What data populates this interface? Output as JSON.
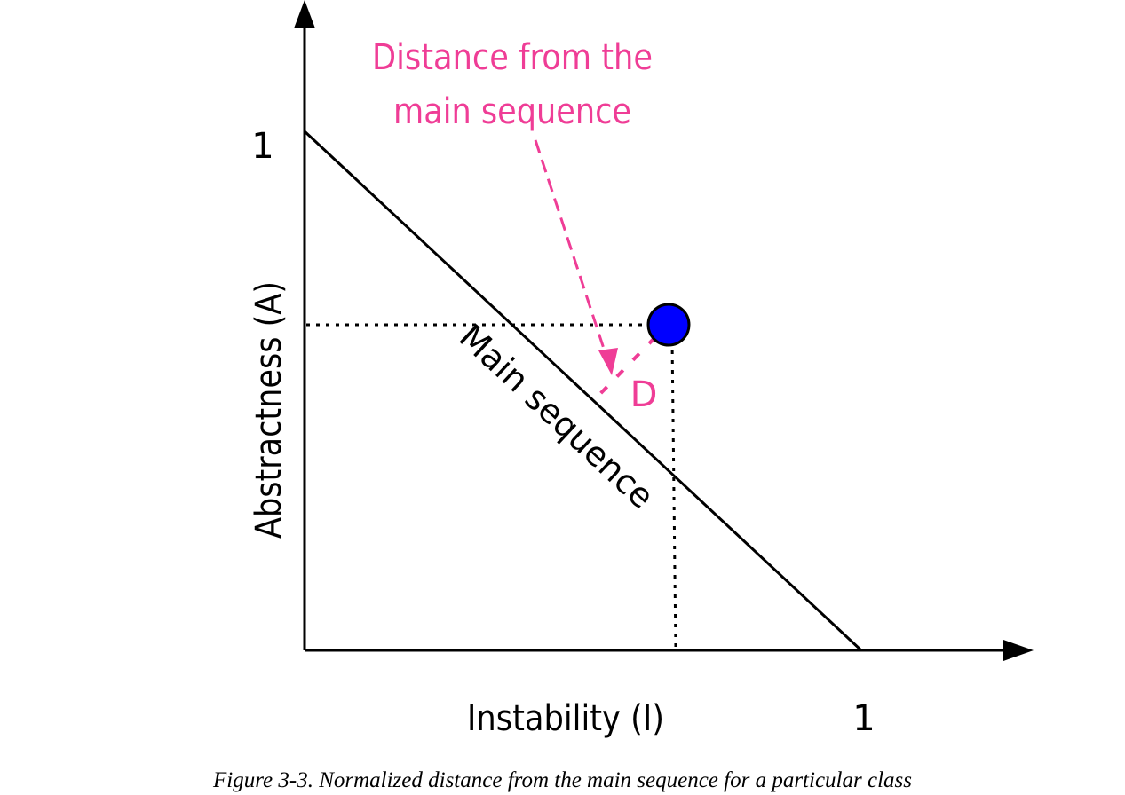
{
  "diagram": {
    "y_tick_label": "1",
    "x_tick_label": "1",
    "y_axis_label": "Abstractness (A)",
    "x_axis_label": "Instability (I)",
    "main_sequence_label": "Main sequence",
    "callout": {
      "line1": "Distance from the",
      "line2": "main sequence"
    },
    "distance_label": "D"
  },
  "caption": "Figure 3-3. Normalized distance from the main sequence for a particular class",
  "colors": {
    "axes": "#000000",
    "callout": "#ef3d96",
    "class_point": "#0000ff"
  }
}
